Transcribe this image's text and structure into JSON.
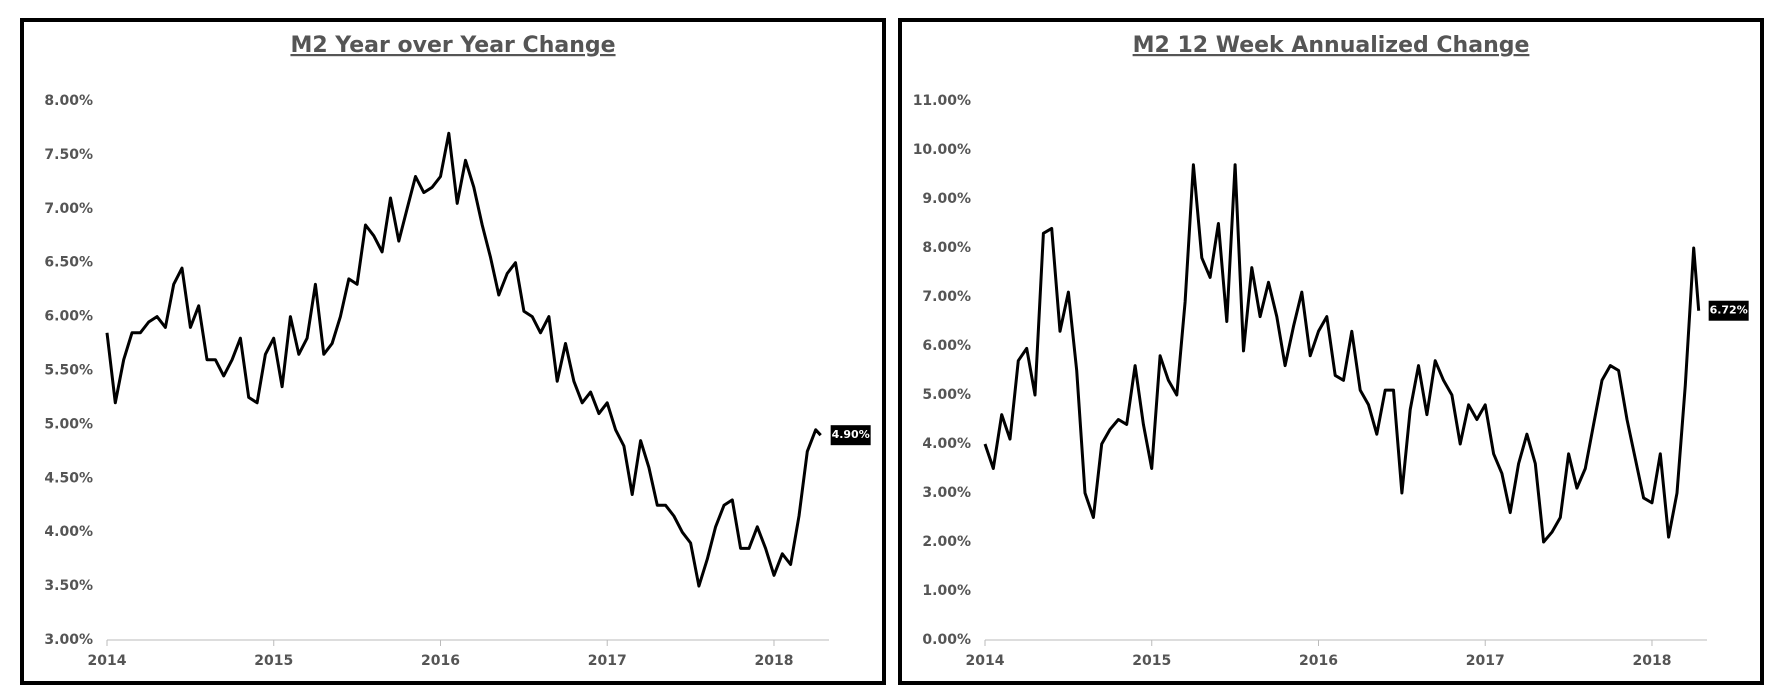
{
  "chart_data": [
    {
      "type": "line",
      "title": "M2 Year over Year Change",
      "color": "#000000",
      "annotation": "4.90%",
      "xlim": [
        2014,
        2018.33
      ],
      "xticks": [
        2014,
        2015,
        2016,
        2017,
        2018
      ],
      "ylim": [
        3,
        8
      ],
      "yticks": [
        {
          "value": 3,
          "label": "3.00%"
        },
        {
          "value": 3.5,
          "label": "3.50%"
        },
        {
          "value": 4,
          "label": "4.00%"
        },
        {
          "value": 4.5,
          "label": "4.50%"
        },
        {
          "value": 5,
          "label": "5.00%"
        },
        {
          "value": 5.5,
          "label": "5.50%"
        },
        {
          "value": 6,
          "label": "6.00%"
        },
        {
          "value": 6.5,
          "label": "6.50%"
        },
        {
          "value": 7,
          "label": "7.00%"
        },
        {
          "value": 7.5,
          "label": "7.50%"
        },
        {
          "value": 8,
          "label": "8.00%"
        }
      ],
      "x": [
        2014.0,
        2014.05,
        2014.1,
        2014.15,
        2014.2,
        2014.25,
        2014.3,
        2014.35,
        2014.4,
        2014.45,
        2014.5,
        2014.55,
        2014.6,
        2014.65,
        2014.7,
        2014.75,
        2014.8,
        2014.85,
        2014.9,
        2014.95,
        2015.0,
        2015.05,
        2015.1,
        2015.15,
        2015.2,
        2015.25,
        2015.3,
        2015.35,
        2015.4,
        2015.45,
        2015.5,
        2015.55,
        2015.6,
        2015.65,
        2015.7,
        2015.75,
        2015.8,
        2015.85,
        2015.9,
        2015.95,
        2016.0,
        2016.05,
        2016.1,
        2016.15,
        2016.2,
        2016.25,
        2016.3,
        2016.35,
        2016.4,
        2016.45,
        2016.5,
        2016.55,
        2016.6,
        2016.65,
        2016.7,
        2016.75,
        2016.8,
        2016.85,
        2016.9,
        2016.95,
        2017.0,
        2017.05,
        2017.1,
        2017.15,
        2017.2,
        2017.25,
        2017.3,
        2017.35,
        2017.4,
        2017.45,
        2017.5,
        2017.55,
        2017.6,
        2017.65,
        2017.7,
        2017.75,
        2017.8,
        2017.85,
        2017.9,
        2017.95,
        2018.0,
        2018.05,
        2018.1,
        2018.15,
        2018.2,
        2018.25,
        2018.28
      ],
      "values": [
        5.85,
        5.2,
        5.6,
        5.85,
        5.85,
        5.95,
        6.0,
        5.9,
        6.3,
        6.45,
        5.9,
        6.1,
        5.6,
        5.6,
        5.45,
        5.6,
        5.8,
        5.25,
        5.2,
        5.65,
        5.8,
        5.35,
        6.0,
        5.65,
        5.8,
        6.3,
        5.65,
        5.75,
        6.0,
        6.35,
        6.3,
        6.85,
        6.75,
        6.6,
        7.1,
        6.7,
        7.0,
        7.3,
        7.15,
        7.2,
        7.3,
        7.7,
        7.05,
        7.45,
        7.2,
        6.85,
        6.55,
        6.2,
        6.4,
        6.5,
        6.05,
        6.0,
        5.85,
        6.0,
        5.4,
        5.75,
        5.4,
        5.2,
        5.3,
        5.1,
        5.2,
        4.95,
        4.8,
        4.35,
        4.85,
        4.6,
        4.25,
        4.25,
        4.15,
        4.0,
        3.9,
        3.5,
        3.75,
        4.05,
        4.25,
        4.3,
        3.85,
        3.85,
        4.05,
        3.85,
        3.6,
        3.8,
        3.7,
        4.15,
        4.75,
        4.95,
        4.9
      ]
    },
    {
      "type": "line",
      "title": "M2 12 Week Annualized Change",
      "color": "#000000",
      "annotation": "6.72%",
      "xlim": [
        2014,
        2018.33
      ],
      "xticks": [
        2014,
        2015,
        2016,
        2017,
        2018
      ],
      "ylim": [
        0,
        11
      ],
      "yticks": [
        {
          "value": 0,
          "label": "0.00%"
        },
        {
          "value": 1,
          "label": "1.00%"
        },
        {
          "value": 2,
          "label": "2.00%"
        },
        {
          "value": 3,
          "label": "3.00%"
        },
        {
          "value": 4,
          "label": "4.00%"
        },
        {
          "value": 5,
          "label": "5.00%"
        },
        {
          "value": 6,
          "label": "6.00%"
        },
        {
          "value": 7,
          "label": "7.00%"
        },
        {
          "value": 8,
          "label": "8.00%"
        },
        {
          "value": 9,
          "label": "9.00%"
        },
        {
          "value": 10,
          "label": "10.00%"
        },
        {
          "value": 11,
          "label": "11.00%"
        }
      ],
      "x": [
        2014.0,
        2014.05,
        2014.1,
        2014.15,
        2014.2,
        2014.25,
        2014.3,
        2014.35,
        2014.4,
        2014.45,
        2014.5,
        2014.55,
        2014.6,
        2014.65,
        2014.7,
        2014.75,
        2014.8,
        2014.85,
        2014.9,
        2014.95,
        2015.0,
        2015.05,
        2015.1,
        2015.15,
        2015.2,
        2015.25,
        2015.3,
        2015.35,
        2015.4,
        2015.45,
        2015.5,
        2015.55,
        2015.6,
        2015.65,
        2015.7,
        2015.75,
        2015.8,
        2015.85,
        2015.9,
        2015.95,
        2016.0,
        2016.05,
        2016.1,
        2016.15,
        2016.2,
        2016.25,
        2016.3,
        2016.35,
        2016.4,
        2016.45,
        2016.5,
        2016.55,
        2016.6,
        2016.65,
        2016.7,
        2016.75,
        2016.8,
        2016.85,
        2016.9,
        2016.95,
        2017.0,
        2017.05,
        2017.1,
        2017.15,
        2017.2,
        2017.25,
        2017.3,
        2017.35,
        2017.4,
        2017.45,
        2017.5,
        2017.55,
        2017.6,
        2017.65,
        2017.7,
        2017.75,
        2017.8,
        2017.85,
        2017.9,
        2017.95,
        2018.0,
        2018.05,
        2018.1,
        2018.15,
        2018.2,
        2018.25,
        2018.28
      ],
      "values": [
        4.0,
        3.5,
        4.6,
        4.1,
        5.7,
        5.95,
        5.0,
        8.3,
        8.4,
        6.3,
        7.1,
        5.5,
        3.0,
        2.5,
        4.0,
        4.3,
        4.5,
        4.4,
        5.6,
        4.4,
        3.5,
        5.8,
        5.3,
        5.0,
        6.9,
        9.7,
        7.8,
        7.4,
        8.5,
        6.5,
        9.7,
        5.9,
        7.6,
        6.6,
        7.3,
        6.6,
        5.6,
        6.4,
        7.1,
        5.8,
        6.3,
        6.6,
        5.4,
        5.3,
        6.3,
        5.1,
        4.8,
        4.2,
        5.1,
        5.1,
        3.0,
        4.7,
        5.6,
        4.6,
        5.7,
        5.3,
        5.0,
        4.0,
        4.8,
        4.5,
        4.8,
        3.8,
        3.4,
        2.6,
        3.6,
        4.2,
        3.6,
        2.0,
        2.2,
        2.5,
        3.8,
        3.1,
        3.5,
        4.4,
        5.3,
        5.6,
        5.5,
        4.5,
        3.7,
        2.9,
        2.8,
        3.8,
        2.1,
        3.0,
        5.2,
        8.0,
        6.72
      ]
    }
  ]
}
